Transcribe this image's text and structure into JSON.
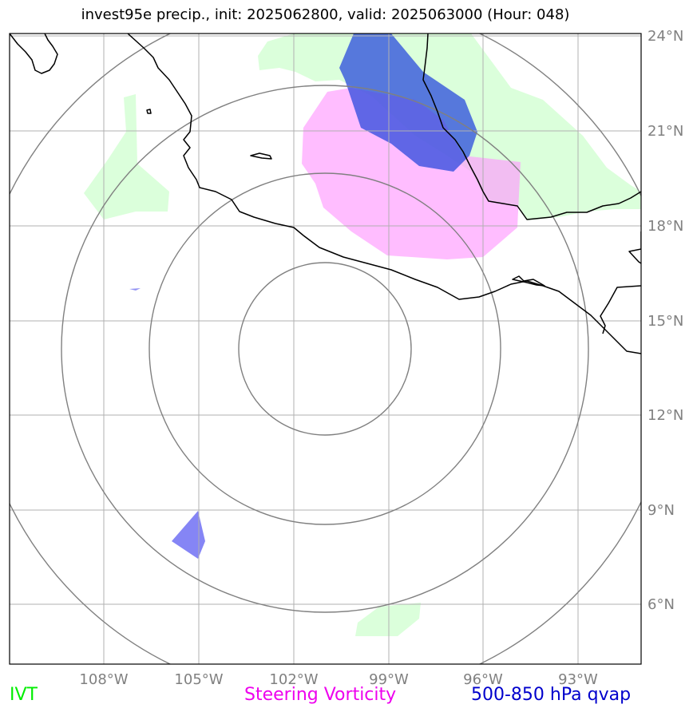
{
  "title": "invest95e precip., init: 2025062800, valid: 2025063000 (Hour: 048)",
  "lon_labels": [
    "108°W",
    "105°W",
    "102°W",
    "99°W",
    "96°W",
    "93°W"
  ],
  "lat_labels": [
    "24°N",
    "21°N",
    "18°N",
    "15°N",
    "12°N",
    "9°N",
    "6°N"
  ],
  "legend": [
    {
      "label": "IVT",
      "color": "#00ee00"
    },
    {
      "label": "Steering Vorticity",
      "color": "#ee00ee"
    },
    {
      "label": "500-850 hPa qvap",
      "color": "#0000cc"
    }
  ],
  "colors": {
    "ivt_fill": "#ccffcc",
    "vorticity_fill": "#ff99ff",
    "qvap_fill": "#2244dd",
    "range_rings": "#808080",
    "gridlines": "#b0b0b0",
    "coastline": "#000000",
    "tick_labels": "#808080"
  }
}
